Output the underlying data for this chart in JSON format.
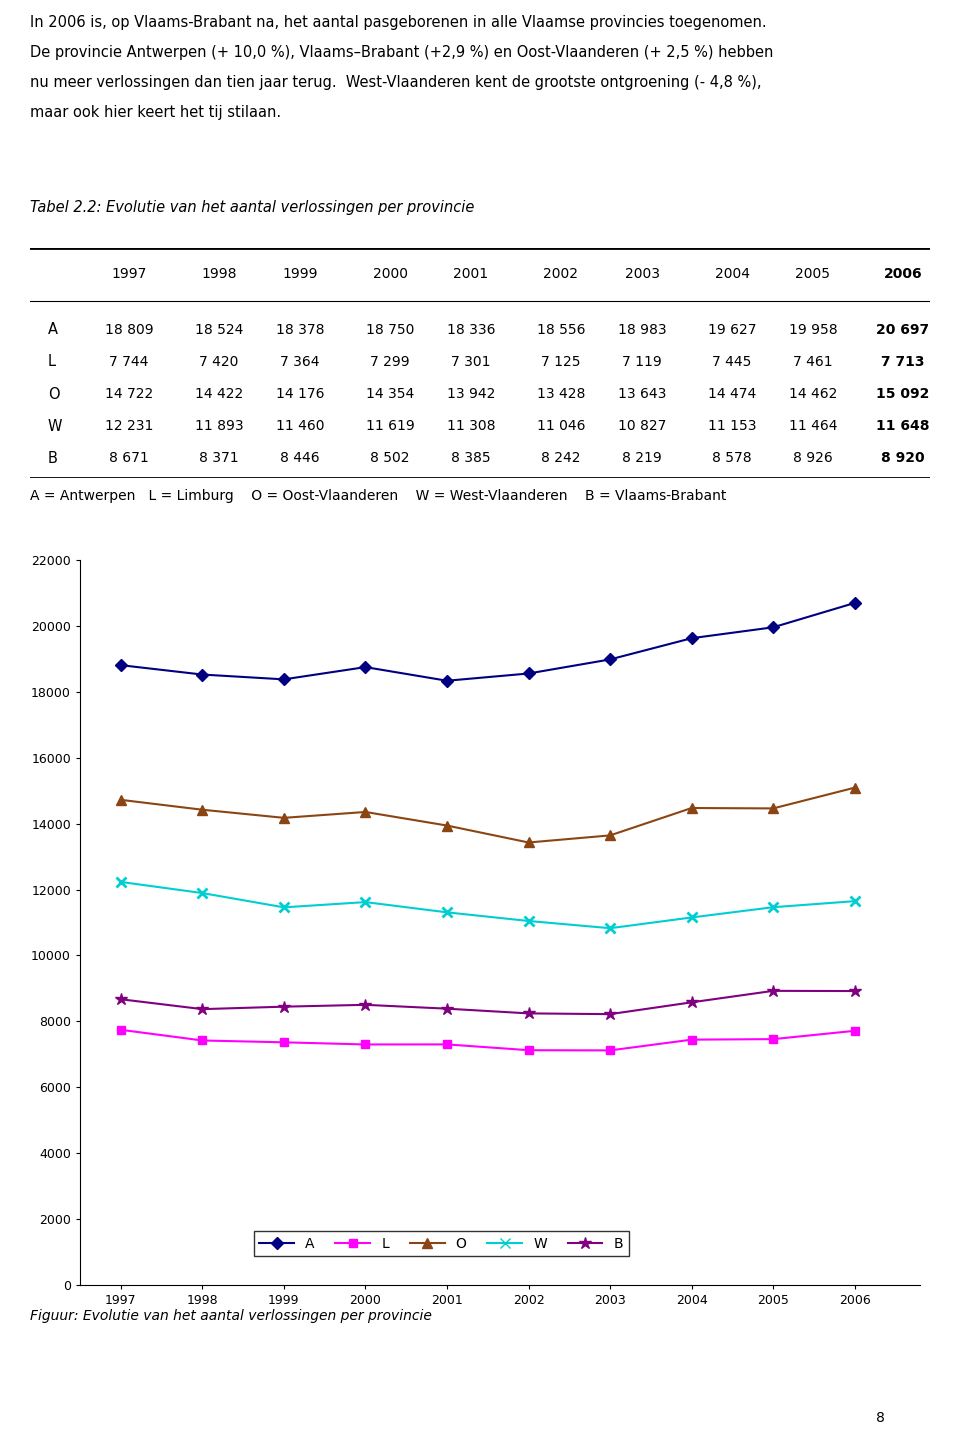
{
  "intro_text_lines": [
    "In 2006 is, op Vlaams-Brabant na, het aantal pasgeborenen in alle Vlaamse provincies toegenomen.",
    "De provincie Antwerpen (+ 10,0 %), Vlaams–Brabant (+2,9 %) en Oost-Vlaanderen (+ 2,5 %) hebben",
    "nu meer verlossingen dan tien jaar terug.  West-Vlaanderen kent de grootste ontgroening (- 4,8 %),",
    "maar ook hier keert het tij stilaan."
  ],
  "table_title": "Tabel 2.2: Evolutie van het aantal verlossingen per provincie",
  "years": [
    1997,
    1998,
    1999,
    2000,
    2001,
    2002,
    2003,
    2004,
    2005,
    2006
  ],
  "table_rows": [
    {
      "label": "A",
      "values": [
        "18 809",
        "18 524",
        "18 378",
        "18 750",
        "18 336",
        "18 556",
        "18 983",
        "19 627",
        "19 958",
        "20 697"
      ]
    },
    {
      "label": "L",
      "values": [
        "7 744",
        "7 420",
        "7 364",
        "7 299",
        "7 301",
        "7 125",
        "7 119",
        "7 445",
        "7 461",
        "7 713"
      ]
    },
    {
      "label": "O",
      "values": [
        "14 722",
        "14 422",
        "14 176",
        "14 354",
        "13 942",
        "13 428",
        "13 643",
        "14 474",
        "14 462",
        "15 092"
      ]
    },
    {
      "label": "W",
      "values": [
        "12 231",
        "11 893",
        "11 460",
        "11 619",
        "11 308",
        "11 046",
        "10 827",
        "11 153",
        "11 464",
        "11 648"
      ]
    },
    {
      "label": "B",
      "values": [
        "8 671",
        "8 371",
        "8 446",
        "8 502",
        "8 385",
        "8 242",
        "8 219",
        "8 578",
        "8 926",
        "8 920"
      ]
    }
  ],
  "legend_text": "A = Antwerpen   L = Limburg    O = Oost-Vlaanderen    W = West-Vlaanderen    B = Vlaams-Brabant",
  "fig_caption": "Figuur: Evolutie van het aantal verlossingen per provincie",
  "page_number": "8",
  "data": {
    "A": [
      18809,
      18524,
      18378,
      18750,
      18336,
      18556,
      18983,
      19627,
      19958,
      20697
    ],
    "L": [
      7744,
      7420,
      7364,
      7299,
      7301,
      7125,
      7119,
      7445,
      7461,
      7713
    ],
    "O": [
      14722,
      14422,
      14176,
      14354,
      13942,
      13428,
      13643,
      14474,
      14462,
      15092
    ],
    "W": [
      12231,
      11893,
      11460,
      11619,
      11308,
      11046,
      10827,
      11153,
      11464,
      11648
    ],
    "B": [
      8671,
      8371,
      8446,
      8502,
      8385,
      8242,
      8219,
      8578,
      8926,
      8920
    ]
  },
  "line_colors": {
    "A": "#000080",
    "L": "#FF00FF",
    "O": "#8B4513",
    "W": "#00CED1",
    "B": "#800080"
  },
  "yticks": [
    0,
    2000,
    4000,
    6000,
    8000,
    10000,
    12000,
    14000,
    16000,
    18000,
    20000,
    22000
  ]
}
